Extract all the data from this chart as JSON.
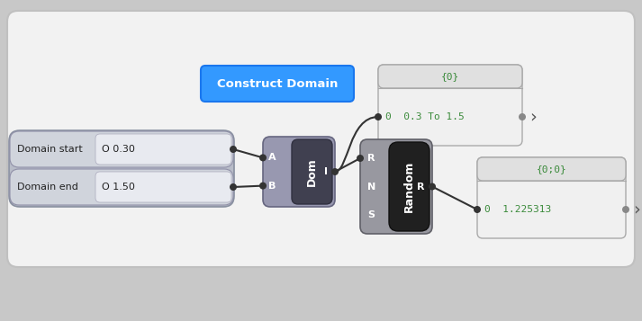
{
  "fig_w": 7.13,
  "fig_h": 3.57,
  "dpi": 100,
  "bg_outer": "#c8c8c8",
  "bg_inner": "#f0f0f0",
  "input_panel": {
    "label": "Domain start",
    "label2": "Domain end",
    "val1": "O 0.30",
    "val2": "O 1.50"
  },
  "dom_node_text": "Dom",
  "random_node_text": "Random",
  "construct_text": "Construct Domain",
  "ob1_header": "{0}",
  "ob1_value": "0  0.3 To 1.5",
  "ob2_header": "{0;0}",
  "ob2_value": "0  1.225313",
  "green": "#3a8a3a",
  "white": "#ffffff",
  "black": "#111111"
}
